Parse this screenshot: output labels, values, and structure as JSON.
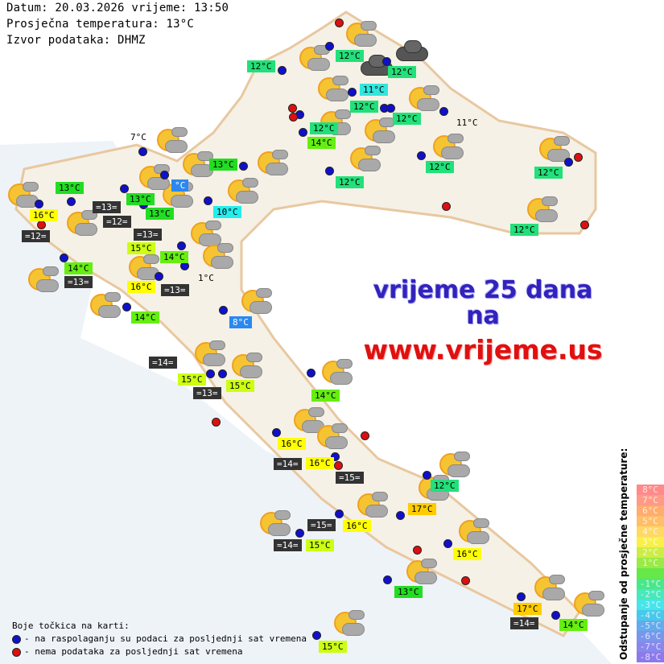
{
  "header": {
    "date_line": "Datum: 20.03.2026 vrijeme: 13:50",
    "avg_temp_line": "Prosječna temperatura: 13°C",
    "source_line": "Izvor podataka: DHMZ"
  },
  "ad": {
    "line1": "vrijeme 25 dana",
    "line2": "na",
    "url": "www.vrijeme.us"
  },
  "legend": {
    "title": "Boje točkica na karti:",
    "blue": "- na raspolaganju su podaci za posljednji sat vremena",
    "red": "- nema podataka za posljednji sat vremena",
    "blue_color": "#1010cc",
    "red_color": "#dd1010"
  },
  "scale": {
    "title": "Odstupanje od prosječne temperature:",
    "rows": [
      {
        "label": "8°C",
        "color": "#ff8a8a"
      },
      {
        "label": "7°C",
        "color": "#ff9a86"
      },
      {
        "label": "6°C",
        "color": "#ffac70"
      },
      {
        "label": "5°C",
        "color": "#ffbe6a"
      },
      {
        "label": "4°C",
        "color": "#ffd866"
      },
      {
        "label": "3°C",
        "color": "#f8f048"
      },
      {
        "label": "2°C",
        "color": "#cdec48"
      },
      {
        "label": "1°C",
        "color": "#9aea48"
      },
      {
        "label": "",
        "color": "#66e848"
      },
      {
        "label": "-1°C",
        "color": "#48e88a"
      },
      {
        "label": "-2°C",
        "color": "#48e8bc"
      },
      {
        "label": "-3°C",
        "color": "#48e4e8"
      },
      {
        "label": "-4°C",
        "color": "#48c8ec"
      },
      {
        "label": "-5°C",
        "color": "#64aaec"
      },
      {
        "label": "-6°C",
        "color": "#7896ec"
      },
      {
        "label": "-7°C",
        "color": "#8888ec"
      },
      {
        "label": "-8°C",
        "color": "#8c7aec"
      }
    ]
  },
  "stations": [
    "12°C",
    "12°C",
    "12°C",
    "11°C",
    "12°C",
    "12°C",
    "11°C",
    "12°C",
    "14°C",
    "12°C",
    "12°C",
    "12°C",
    "12°C",
    "7°C",
    "13°C",
    "13°C",
    "°C",
    "13°C",
    "=13=",
    "10°C",
    "16°C",
    "=12=",
    "13°C",
    "=13=",
    "15°C",
    "=12=",
    "14°C",
    "1°C",
    "14°C",
    "=13=",
    "16°C",
    "=13=",
    "14°C",
    "8°C",
    "=14=",
    "15°C",
    "=13=",
    "15°C",
    "14°C",
    "16°C",
    "=14=",
    "16°C",
    "=15=",
    "12°C",
    "17°C",
    "=15=",
    "16°C",
    "=14=",
    "15°C",
    "16°C",
    "13°C",
    "17°C",
    "=14=",
    "14°C",
    "15°C"
  ],
  "temp_colors": {
    "8": "#2a88f0",
    "10": "#22eeee",
    "11": "#33e6dd",
    "12": "#22e07a",
    "13": "#22dd22",
    "14": "#66ee11",
    "15": "#ccff11",
    "16": "#ffff00",
    "17": "#ffcc00"
  }
}
